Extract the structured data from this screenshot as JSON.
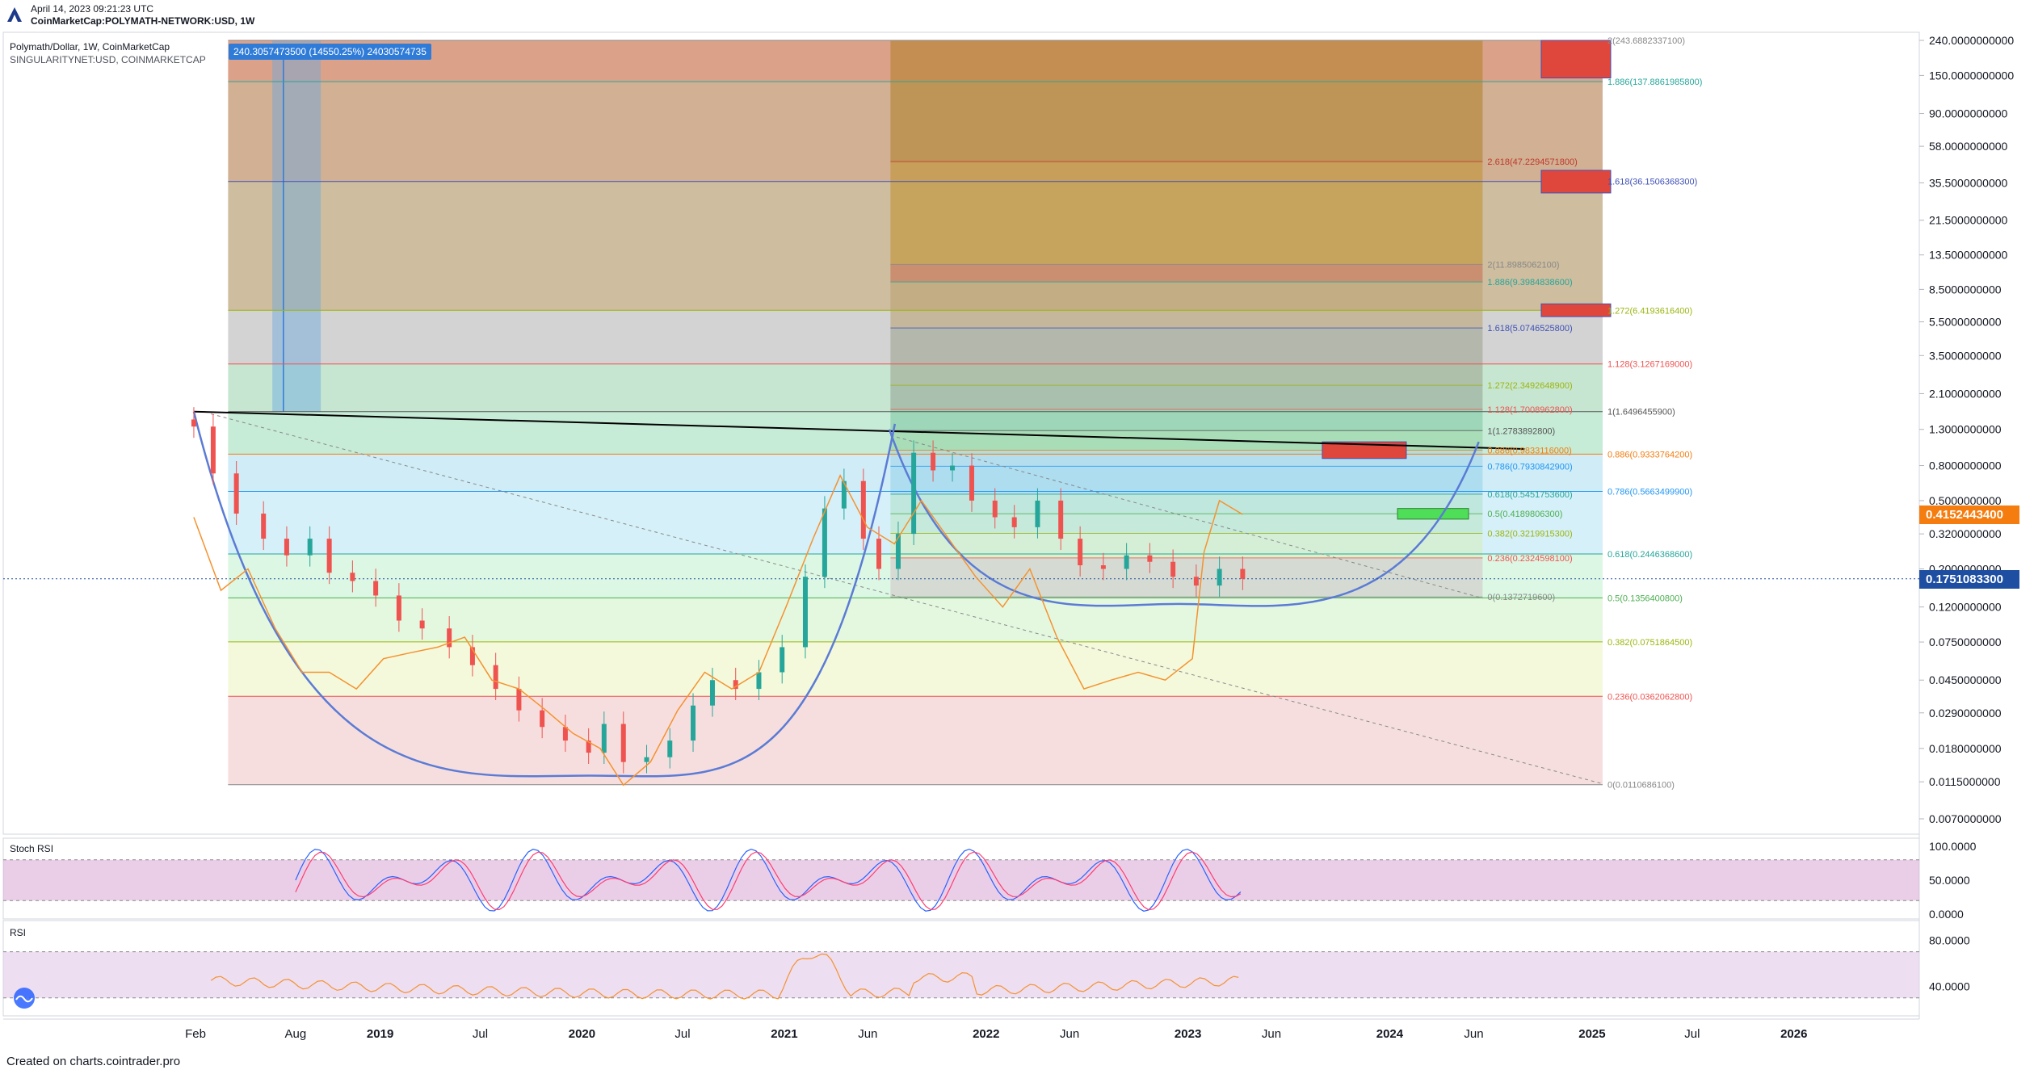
{
  "header": {
    "date": "April 14, 2023 09:21:23 UTC",
    "symbol": "CoinMarketCap:POLYMATH-NETWORK:USD, 1W"
  },
  "legend": {
    "title": "Polymath/Dollar, 1W, CoinMarketCap",
    "subtitle": "SINGULARITYNET:USD, COINMARKETCAP"
  },
  "measure_label": "240.3057473500 (14550.25%) 24030574735",
  "price_tags": {
    "orange": "0.4152443400",
    "blue": "0.1751083300"
  },
  "colors": {
    "orange_tag": "#f57c0e",
    "blue_tag": "#1e4ea2",
    "candle_up": "#26a69a",
    "candle_down": "#ef5350",
    "orange_line": "#f5922f",
    "bowl": "#5b7bd5"
  },
  "panes": {
    "stoch_title": "Stoch RSI",
    "rsi_title": "RSI"
  },
  "footer": "Created on charts.cointrader.pro",
  "chart_data": [
    {
      "type": "line",
      "scale": "log",
      "y_ticks": [
        "240.0000000000",
        "150.0000000000",
        "90.0000000000",
        "58.0000000000",
        "35.5000000000",
        "21.5000000000",
        "13.5000000000",
        "8.5000000000",
        "5.5000000000",
        "3.5000000000",
        "2.1000000000",
        "1.3000000000",
        "0.8000000000",
        "0.5000000000",
        "0.3200000000",
        "0.2000000000",
        "0.1200000000",
        "0.0750000000",
        "0.0450000000",
        "0.0290000000",
        "0.0180000000",
        "0.0115000000",
        "0.0070000000"
      ],
      "y_tick_values": [
        240,
        150,
        90,
        58,
        35.5,
        21.5,
        13.5,
        8.5,
        5.5,
        3.5,
        2.1,
        1.3,
        0.8,
        0.5,
        0.32,
        0.2,
        0.12,
        0.075,
        0.045,
        0.029,
        0.018,
        0.0115,
        0.007
      ],
      "x_ticks": [
        "Feb",
        "Aug",
        "2019",
        "Jul",
        "2020",
        "Jul",
        "2021",
        "Jun",
        "2022",
        "Jun",
        "2023",
        "Jun",
        "2024",
        "Jun",
        "2025",
        "Jul",
        "2026"
      ],
      "x_tick_dates": [
        "2018-02-01",
        "2018-08-01",
        "2019-01-01",
        "2019-07-01",
        "2020-01-01",
        "2020-07-01",
        "2021-01-01",
        "2021-06-01",
        "2022-01-01",
        "2022-06-01",
        "2023-01-01",
        "2023-06-01",
        "2024-01-01",
        "2024-06-01",
        "2025-01-01",
        "2025-07-01",
        "2026-01-01"
      ],
      "series": [
        {
          "name": "Polymath/Dollar",
          "x": [
            "2018-01-29",
            "2018-03-05",
            "2018-04-16",
            "2018-06-04",
            "2018-07-16",
            "2018-08-27",
            "2018-10-01",
            "2018-11-12",
            "2018-12-24",
            "2019-02-04",
            "2019-03-18",
            "2019-05-06",
            "2019-06-17",
            "2019-07-29",
            "2019-09-09",
            "2019-10-21",
            "2019-12-02",
            "2020-01-13",
            "2020-02-10",
            "2020-03-16",
            "2020-04-27",
            "2020-06-08",
            "2020-07-20",
            "2020-08-24",
            "2020-10-05",
            "2020-11-16",
            "2020-12-28",
            "2021-02-08",
            "2021-03-15",
            "2021-04-19",
            "2021-05-24",
            "2021-06-21",
            "2021-07-26",
            "2021-08-23",
            "2021-09-27",
            "2021-11-01",
            "2021-12-06",
            "2022-01-17",
            "2022-02-21",
            "2022-04-04",
            "2022-05-16",
            "2022-06-20",
            "2022-08-01",
            "2022-09-12",
            "2022-10-24",
            "2022-12-05",
            "2023-01-16",
            "2023-02-27",
            "2023-04-10"
          ],
          "values": [
            1.35,
            0.72,
            0.42,
            0.3,
            0.24,
            0.3,
            0.19,
            0.17,
            0.14,
            0.1,
            0.09,
            0.07,
            0.055,
            0.04,
            0.03,
            0.024,
            0.02,
            0.017,
            0.025,
            0.015,
            0.016,
            0.02,
            0.032,
            0.045,
            0.04,
            0.05,
            0.07,
            0.18,
            0.45,
            0.65,
            0.3,
            0.2,
            0.32,
            0.95,
            0.75,
            0.8,
            0.5,
            0.4,
            0.35,
            0.5,
            0.3,
            0.21,
            0.2,
            0.24,
            0.22,
            0.18,
            0.16,
            0.2,
            0.175
          ]
        },
        {
          "name": "SINGULARITYNET:USD",
          "x": [
            "2018-01-29",
            "2018-03-19",
            "2018-05-07",
            "2018-06-25",
            "2018-08-13",
            "2018-10-01",
            "2018-11-19",
            "2019-01-07",
            "2019-02-25",
            "2019-04-15",
            "2019-06-03",
            "2019-07-22",
            "2019-09-09",
            "2019-10-28",
            "2019-12-16",
            "2020-02-03",
            "2020-03-16",
            "2020-05-04",
            "2020-06-22",
            "2020-08-10",
            "2020-09-28",
            "2020-11-16",
            "2021-01-04",
            "2021-02-22",
            "2021-04-12",
            "2021-05-31",
            "2021-07-19",
            "2021-09-06",
            "2021-10-25",
            "2021-12-13",
            "2022-01-31",
            "2022-03-21",
            "2022-05-09",
            "2022-06-27",
            "2022-08-15",
            "2022-10-03",
            "2022-11-21",
            "2023-01-09",
            "2023-01-30",
            "2023-02-27",
            "2023-04-10"
          ],
          "values": [
            0.4,
            0.15,
            0.2,
            0.09,
            0.05,
            0.05,
            0.04,
            0.06,
            0.065,
            0.07,
            0.08,
            0.045,
            0.04,
            0.03,
            0.022,
            0.018,
            0.011,
            0.015,
            0.03,
            0.05,
            0.04,
            0.05,
            0.12,
            0.3,
            0.7,
            0.35,
            0.28,
            0.5,
            0.3,
            0.18,
            0.12,
            0.2,
            0.08,
            0.04,
            0.045,
            0.05,
            0.045,
            0.06,
            0.25,
            0.5,
            0.415
          ]
        }
      ],
      "fib_levels": {
        "left_set": [
          "2(243.6882337100)",
          "1.886(137.8861985800)",
          "1.618(36.1506368300)",
          "1.272(6.4193616400)",
          "1.128(3.1267169000)",
          "1(1.6496455900)",
          "0.886(0.9333764200)",
          "0.786(0.5663499900)",
          "0.618(0.2446368600)",
          "0.5(0.1356400800)",
          "0.382(0.0751864500)",
          "0.236(0.0362062800)",
          "0(0.0110686100)"
        ],
        "right_set": [
          "2.618(47.2294571800)",
          "2(11.8985062100)",
          "1.886(9.3984838600)",
          "1.618(5.0746525800)",
          "1.272(2.3492648900)",
          "1.128(1.7008962800)",
          "1(1.2783892800)",
          "0.886(0.9833116000)",
          "0.786(0.7930842900)",
          "0.618(0.5451753600)",
          "0.5(0.4189806300)",
          "0.382(0.3219915300)",
          "0.236(0.2324598100)",
          "0(0.1372719600)"
        ]
      }
    },
    {
      "type": "line",
      "name": "Stoch RSI",
      "y_ticks": [
        "100.0000",
        "50.0000",
        "0.0000"
      ],
      "ylim": [
        0,
        100
      ]
    },
    {
      "type": "line",
      "name": "RSI",
      "y_ticks": [
        "80.0000",
        "40.0000"
      ],
      "ylim": [
        20,
        90
      ]
    }
  ]
}
